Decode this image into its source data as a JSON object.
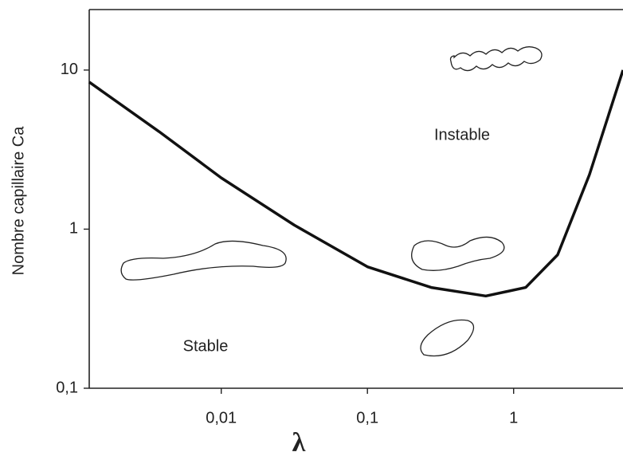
{
  "chart_data": {
    "type": "line",
    "xlabel": "λ",
    "ylabel": "Nombre capillaire Ca",
    "annotations": [
      "Instable",
      "Stable"
    ],
    "xscale": "log",
    "yscale": "log",
    "xlim": [
      0.00125,
      5.6
    ],
    "ylim": [
      0.1,
      24
    ],
    "xticks": [
      {
        "value": 0.01,
        "label": "0,01"
      },
      {
        "value": 0.1,
        "label": "0,1"
      },
      1
    ],
    "yticks": [
      {
        "value": 0.1,
        "label": "0,1"
      },
      1,
      10
    ],
    "x": [
      0.00125,
      0.00376,
      0.01,
      0.0316,
      0.1,
      0.273,
      0.645,
      1.21,
      2.0,
      3.3,
      5.6
    ],
    "series": [
      {
        "color": "#111111",
        "values": [
          8.4,
          4.1,
          2.1,
          1.06,
          0.58,
          0.43,
          0.38,
          0.43,
          0.69,
          2.2,
          10
        ]
      }
    ]
  }
}
